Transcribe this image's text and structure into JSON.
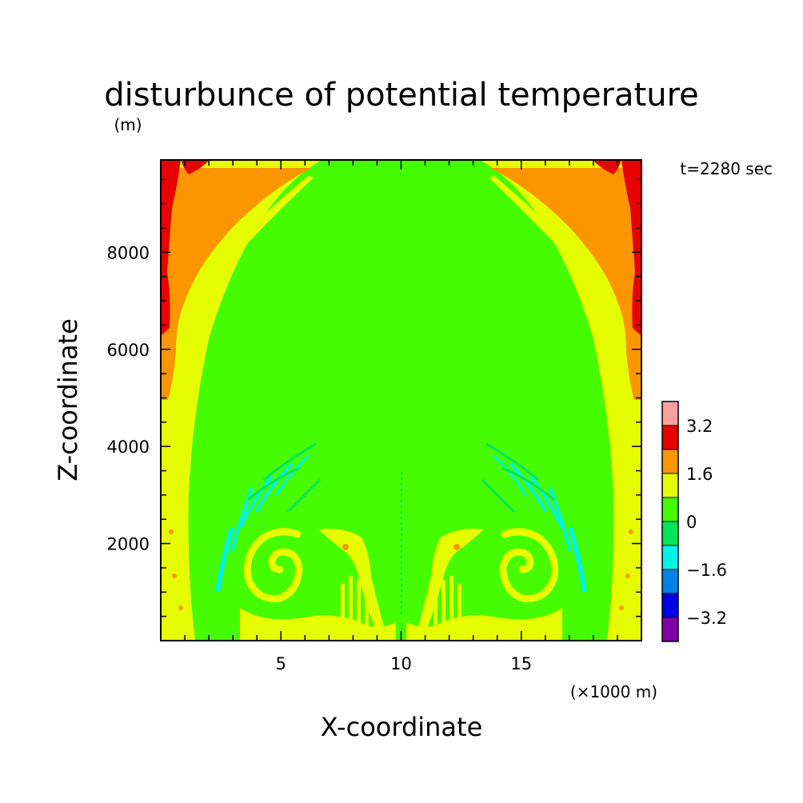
{
  "chart_data": {
    "type": "heatmap",
    "title": "disturbunce of potential temperature",
    "z_unit": "(m)",
    "xlabel": "X-coordinate",
    "ylabel": "Z-coordinate",
    "x_unit": "(×1000 m)",
    "time_label": "t=2280 sec",
    "xlim": [
      0,
      20
    ],
    "ylim": [
      0,
      9900
    ],
    "x_ticks": [
      {
        "value": 5,
        "label": "5"
      },
      {
        "value": 10,
        "label": "10"
      },
      {
        "value": 15,
        "label": "15"
      }
    ],
    "y_ticks": [
      {
        "value": 2000,
        "label": "2000"
      },
      {
        "value": 4000,
        "label": "4000"
      },
      {
        "value": 6000,
        "label": "6000"
      },
      {
        "value": 8000,
        "label": "8000"
      }
    ],
    "colorbar": {
      "colors": [
        "#7f00a8",
        "#0000e6",
        "#0082e6",
        "#00f2e6",
        "#00e65a",
        "#46fc00",
        "#e6fc00",
        "#fc9600",
        "#e60000",
        "#f7a0a0"
      ],
      "tick_labels": [
        {
          "bin_edge": 1,
          "label": "-3.2"
        },
        {
          "bin_edge": 3,
          "label": "-1.6"
        },
        {
          "bin_edge": 5,
          "label": "0"
        },
        {
          "bin_edge": 7,
          "label": "1.6"
        },
        {
          "bin_edge": 9,
          "label": "3.2"
        }
      ]
    },
    "field_colors": {
      "background": "#46fc00",
      "weak_warm": "#e6fc00",
      "warm": "#fc9600",
      "strong_warm": "#e60000",
      "weak_cold": "#00e65a",
      "cold": "#00f2e6"
    }
  }
}
